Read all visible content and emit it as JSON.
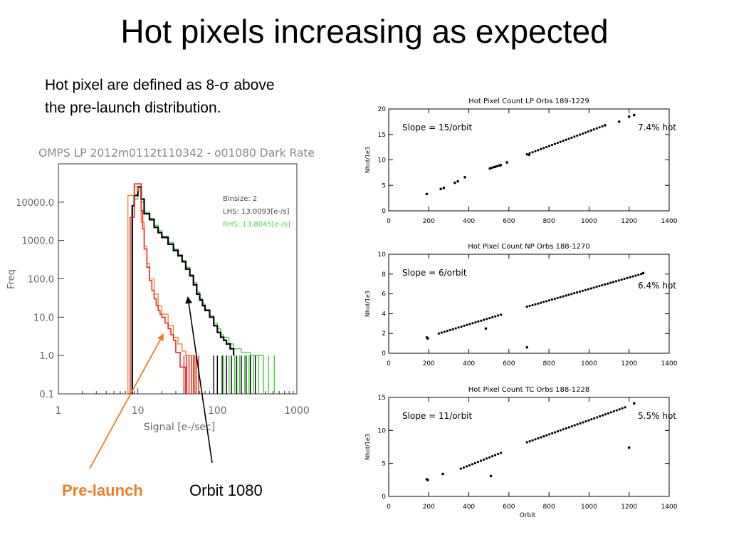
{
  "slide": {
    "title": "Hot pixels increasing as expected",
    "intro_prefix": "Hot pixel are defined as 8-",
    "intro_sigma": "σ",
    "intro_rest": " above",
    "intro_line2": "the pre-launch distribution.",
    "callout_prelaunch": "Pre-launch",
    "callout_orbit": "Orbit 1080"
  },
  "colors": {
    "prelaunch_red": "#e8201a",
    "prelaunch_orange": "#f08018",
    "orbit_black": "#000000",
    "orbit_green": "#3fd43c",
    "arrow_orange": "#ee7d1f"
  },
  "chart_data": [
    {
      "type": "line",
      "title": "OMPS LP 2012m0112t110342 - o01080 Dark Rate",
      "xlabel": "Signal [e-/sec]",
      "ylabel": "Freq",
      "xscale": "log",
      "yscale": "log",
      "xlim": [
        1,
        1000
      ],
      "ylim": [
        0.1,
        100000
      ],
      "x_ticks": [
        "1",
        "10",
        "100",
        "1000"
      ],
      "y_ticks": [
        "0.1",
        "1.0",
        "10.0",
        "100.0",
        "1000.0",
        "10000.0"
      ],
      "annotations": [
        "Binsize: 2",
        "LHS: 13.0093[e-/s]",
        "RHS: 13.8045[e-/s]"
      ],
      "series": [
        {
          "name": "",
          "color_key": "prelaunch_red",
          "x": [
            7.5,
            8,
            9,
            10,
            11,
            11.5,
            12,
            13,
            14,
            15,
            16,
            17,
            18,
            19,
            20,
            22,
            24,
            26,
            28,
            30,
            34,
            40
          ],
          "y": [
            0.1,
            4000,
            30000,
            30000,
            6000,
            2000,
            600,
            200,
            90,
            50,
            30,
            20,
            15,
            12,
            10,
            7,
            5,
            3.5,
            2.5,
            1.2,
            0.5,
            0.1
          ]
        },
        {
          "name": "",
          "color_key": "prelaunch_orange",
          "x": [
            7,
            7.5,
            9,
            10,
            11,
            12,
            13,
            14,
            16,
            18,
            20,
            24,
            28,
            32,
            36,
            40,
            44,
            48,
            52
          ],
          "y": [
            0.1,
            15000,
            25000,
            20000,
            3000,
            700,
            250,
            100,
            40,
            20,
            12,
            6,
            3,
            2,
            1.3,
            1,
            1,
            1,
            0.1
          ]
        },
        {
          "name": "",
          "color_key": "orbit_black",
          "x": [
            8,
            8.5,
            9,
            10,
            11,
            12,
            14,
            16,
            18,
            20,
            24,
            28,
            32,
            36,
            40,
            45,
            50,
            55,
            60,
            65,
            70,
            80,
            90,
            100,
            110,
            120,
            130,
            145,
            160
          ],
          "y": [
            0.1,
            8000,
            15000,
            25000,
            12000,
            5000,
            3500,
            2200,
            1600,
            1200,
            800,
            550,
            400,
            280,
            180,
            120,
            70,
            40,
            28,
            20,
            15,
            10,
            6,
            4,
            3,
            2.5,
            2,
            1.5,
            1
          ]
        },
        {
          "name": "",
          "color_key": "orbit_green",
          "x": [
            9,
            10,
            11,
            12,
            14,
            16,
            18,
            20,
            24,
            28,
            32,
            36,
            40,
            45,
            50,
            55,
            60,
            65,
            70,
            80,
            90,
            100,
            110,
            120,
            140,
            160,
            200,
            260,
            320,
            380
          ],
          "y": [
            12000,
            20000,
            10000,
            5500,
            3800,
            2500,
            1800,
            1300,
            900,
            600,
            430,
            300,
            200,
            130,
            80,
            45,
            30,
            22,
            16,
            11,
            7,
            5,
            3.5,
            3,
            2,
            1.5,
            1.2,
            1,
            1,
            1
          ]
        }
      ]
    },
    {
      "type": "scatter",
      "title": "Hot Pixel Count LP Orbs 189-1229",
      "xlabel": "",
      "ylabel": "Nhot/1e3",
      "xlim": [
        0,
        1400
      ],
      "ylim": [
        0,
        20
      ],
      "x_ticks": [
        0,
        200,
        400,
        600,
        800,
        1000,
        1200,
        1400
      ],
      "y_ticks": [
        0,
        5,
        10,
        15,
        20
      ],
      "annotations": [
        "Slope =  15/orbit",
        "7.4% hot"
      ],
      "series": [
        {
          "name": "",
          "points": [
            [
              190,
              3.3
            ],
            [
              260,
              4.3
            ],
            [
              275,
              4.5
            ],
            [
              330,
              5.5
            ],
            [
              345,
              5.8
            ],
            [
              380,
              6.6
            ],
            [
              505,
              8.3
            ],
            [
              530,
              8.6
            ],
            [
              555,
              8.9
            ],
            [
              590,
              9.5
            ],
            [
              700,
              11
            ],
            [
              1080,
              16.8
            ],
            [
              1150,
              17.5
            ],
            [
              1200,
              18.5
            ],
            [
              1225,
              18.8
            ]
          ],
          "ranges": [
            [
              510,
              560,
              8.4,
              9.0
            ],
            [
              690,
              1080,
              11.1,
              16.8
            ]
          ]
        }
      ]
    },
    {
      "type": "scatter",
      "title": "Hot Pixel Count NP Orbs 188-1270",
      "xlabel": "",
      "ylabel": "Nhot/1e3",
      "xlim": [
        0,
        1400
      ],
      "ylim": [
        0,
        10
      ],
      "x_ticks": [
        0,
        200,
        400,
        600,
        800,
        1000,
        1200,
        1400
      ],
      "y_ticks": [
        0,
        2,
        4,
        6,
        8,
        10
      ],
      "annotations": [
        "Slope = 6/orbit",
        "6.4% hot"
      ],
      "series": [
        {
          "name": "",
          "points": [
            [
              190,
              1.6
            ],
            [
              195,
              1.5
            ],
            [
              485,
              2.5
            ],
            [
              690,
              0.6
            ],
            [
              1270,
              8.1
            ]
          ],
          "ranges": [
            [
              250,
              560,
              2.0,
              3.9
            ],
            [
              690,
              1260,
              4.7,
              8.0
            ]
          ]
        }
      ]
    },
    {
      "type": "scatter",
      "title": "Hot Pixel Count TC Orbs 188-1228",
      "xlabel": "Orbit",
      "ylabel": "Nhot/1e3",
      "xlim": [
        0,
        1400
      ],
      "ylim": [
        0,
        15
      ],
      "x_ticks": [
        0,
        200,
        400,
        600,
        800,
        1000,
        1200,
        1400
      ],
      "y_ticks": [
        0,
        5,
        10,
        15
      ],
      "annotations": [
        "Slope =  11/orbit",
        "5.5% hot"
      ],
      "series": [
        {
          "name": "",
          "points": [
            [
              190,
              2.6
            ],
            [
              195,
              2.5
            ],
            [
              270,
              3.4
            ],
            [
              510,
              3.1
            ],
            [
              1200,
              7.4
            ],
            [
              1225,
              14.1
            ]
          ],
          "ranges": [
            [
              360,
              560,
              4.2,
              6.6
            ],
            [
              690,
              1180,
              8.2,
              13.5
            ]
          ]
        }
      ]
    }
  ]
}
